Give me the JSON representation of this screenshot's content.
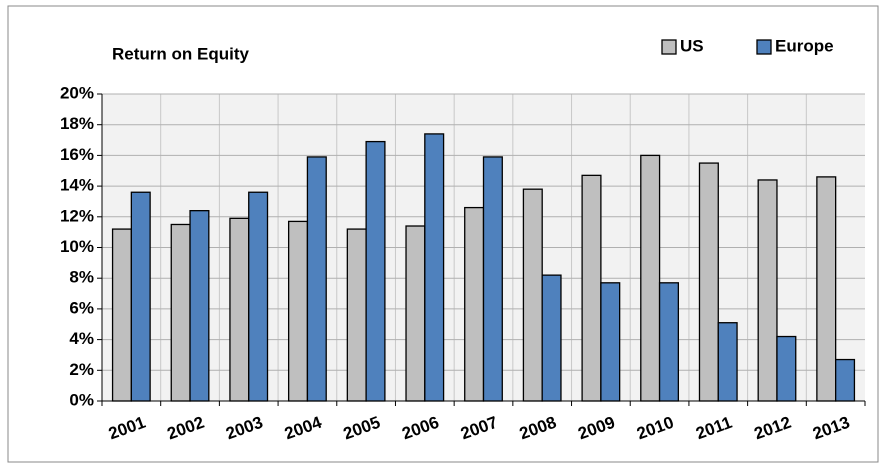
{
  "chart_data": {
    "type": "bar",
    "title": "Return on Equity",
    "categories": [
      "2001",
      "2002",
      "2003",
      "2004",
      "2005",
      "2006",
      "2007",
      "2008",
      "2009",
      "2010",
      "2011",
      "2012",
      "2013"
    ],
    "series": [
      {
        "name": "US",
        "color": "#bfbfbf",
        "values": [
          11.2,
          11.5,
          11.9,
          11.7,
          11.2,
          11.4,
          12.6,
          13.8,
          14.7,
          16.0,
          15.5,
          14.4,
          14.6
        ]
      },
      {
        "name": "Europe",
        "color": "#4f81bd",
        "values": [
          13.6,
          12.4,
          13.6,
          15.9,
          16.9,
          17.4,
          15.9,
          8.2,
          7.7,
          7.7,
          5.1,
          4.2,
          2.7
        ]
      }
    ],
    "ylim": [
      0,
      20
    ],
    "yticks": [
      {
        "value": 0,
        "label": "0%"
      },
      {
        "value": 2,
        "label": "2%"
      },
      {
        "value": 4,
        "label": "4%"
      },
      {
        "value": 6,
        "label": "6%"
      },
      {
        "value": 8,
        "label": "8%"
      },
      {
        "value": 10,
        "label": "10%"
      },
      {
        "value": 12,
        "label": "12%"
      },
      {
        "value": 14,
        "label": "14%"
      },
      {
        "value": 16,
        "label": "16%"
      },
      {
        "value": 18,
        "label": "18%"
      },
      {
        "value": 20,
        "label": "20%"
      }
    ],
    "grid": true,
    "legend": "top-right"
  }
}
